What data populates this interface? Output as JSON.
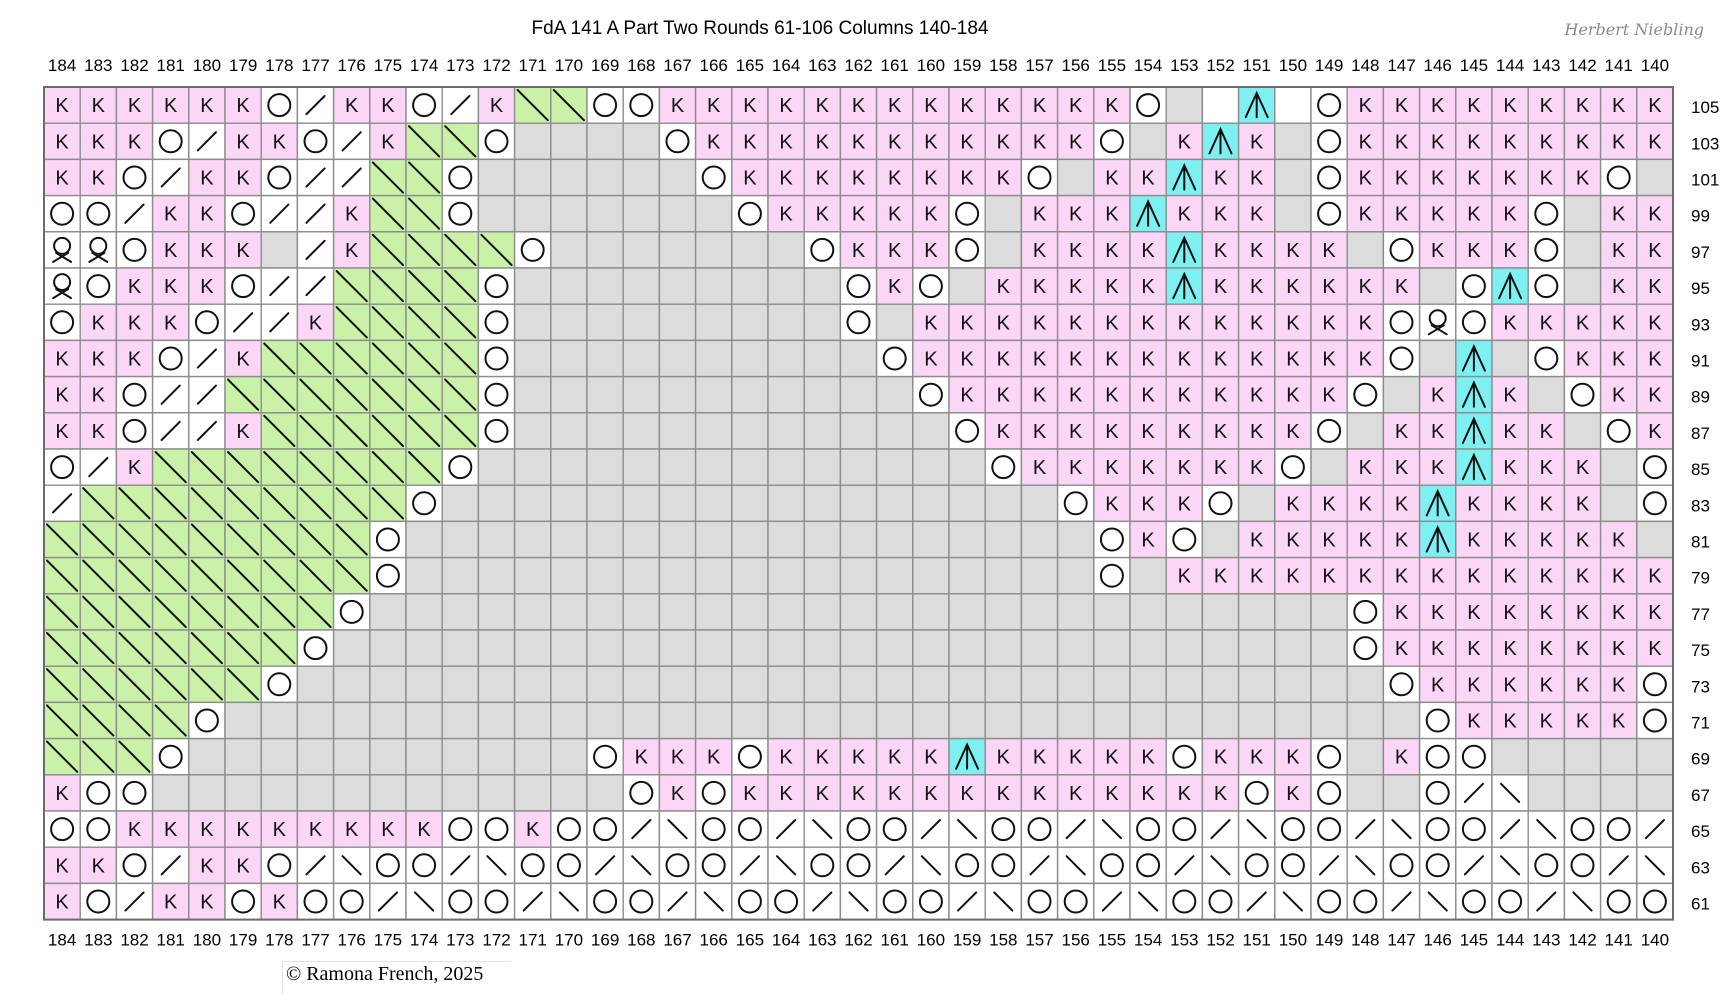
{
  "chart": {
    "title": "FdA 141 A Part Two Rounds 61-106 Columns 140-184",
    "signature": "Herbert Niebling",
    "copyright": "© Ramona French, 2025"
  },
  "colors": {
    "knit": "#fbd6f6",
    "empty": "#dcdcdc",
    "white": "#ffffff",
    "cable": "#c9f2a8",
    "center": "#7ff0f2",
    "grid": "#8c8c8c"
  },
  "legend": {
    "K": "knit",
    "O": "yarn over",
    "/": "k2tog",
    "\\": "ssk",
    "Q": "twisted stitch",
    "^": "center double decrease",
    "X": "cable cross",
    ".": "no stitch",
    "_": "plain"
  },
  "columns": [
    184,
    183,
    182,
    181,
    180,
    179,
    178,
    177,
    176,
    175,
    174,
    173,
    172,
    171,
    170,
    169,
    168,
    167,
    166,
    165,
    164,
    163,
    162,
    161,
    160,
    159,
    158,
    157,
    156,
    155,
    154,
    153,
    152,
    151,
    150,
    149,
    148,
    147,
    146,
    145,
    144,
    143,
    142,
    141,
    140
  ],
  "rows": [
    {
      "label": "105",
      "cells": "KKKKKKO/KKO/KXXOOKKKKKKKKKKKKKO._^_OKKKKKKKKKKKO"
    },
    {
      "label": "103",
      "cells": "KKKO/KKO/KXXO....OKKKKKKKKKKKO.K^K.OKKKKKKKKKO."
    },
    {
      "label": "101",
      "cells": "KKO/KKO//XXO......OKKKKKKKKO.KK^KK.OKKKKKKKO.K"
    },
    {
      "label": "99",
      "cells": "OO/KKO//KXXO.......OKKKKKO.KKK^KKK.OKKKKKO.KK"
    },
    {
      "label": "97",
      "cells": "QQOKKK./KXXXXO.......OKKKO.KKKK^KKKK.OKKKO.KKK"
    },
    {
      "label": "95",
      "cells": "QOKKKO//XXXXO.........OKO.KKKKK^KKKKKK.O^O.KKKK"
    },
    {
      "label": "93",
      "cells": "OKKKO//KXXXXO.........O.KKKKKKKKKKKKKOQOKKKKK"
    },
    {
      "label": "91",
      "cells": "KKKO/KXXXXXXO..........OKKKKKKKKKKKKKO.^.OKKKK"
    },
    {
      "label": "89",
      "cells": "KKO//XXXXXXXO...........OKKKKKKKKKKKO.K^K.OKKK"
    },
    {
      "label": "87",
      "cells": "KKO//KXXXXXXO............OKKKKKKKKKO.KK^KK.OKK"
    },
    {
      "label": "85",
      "cells": "O/KXXXXXXXXO..............OKKKKKKKO.KKK^KKK.OK"
    },
    {
      "label": "83",
      "cells": "/XXXXXXXXXO.................OKKKO.KKKK^KKKK.O"
    },
    {
      "label": "81",
      "cells": "XXXXXXXXXO...................OKO.KKKKK^KKKKK."
    },
    {
      "label": "79",
      "cells": "XXXXXXXXXO...................O.KKKKKKKKKKKKKK"
    },
    {
      "label": "77",
      "cells": "XXXXXXXXO...........................OKKKKKKKKKKKO"
    },
    {
      "label": "75",
      "cells": "XXXXXXXO............................OKKKKKKKKO."
    },
    {
      "label": "73",
      "cells": "XXXXXXO..............................OKKKKKKO.K"
    },
    {
      "label": "71",
      "cells": "XXXXO.................................OKKKKKO.KK"
    },
    {
      "label": "69",
      "cells": "XXXO...........OKKKOKKKKK^KKKKKOKKKO.KOO"
    },
    {
      "label": "67",
      "cells": "KOO.............OKOKKKKKKKKKKKKKKOKO..O/\\"
    },
    {
      "label": "65",
      "cells": "OOKKKKKKKKKOOKOO/\\OO/\\OO/\\OO/\\OO/\\OO/\\OO/\\OO/\\OO"
    },
    {
      "label": "63",
      "cells": "KKO/KKO/\\OO/\\OO/\\OO/\\OO/\\OO/\\OO/\\OO/\\OO/\\OO/\\"
    },
    {
      "label": "61",
      "cells": "KO/KKOKOO/\\OO/\\OO/\\OO/\\OO/\\OO/\\OO/\\OO/\\OO/\\OO"
    }
  ]
}
